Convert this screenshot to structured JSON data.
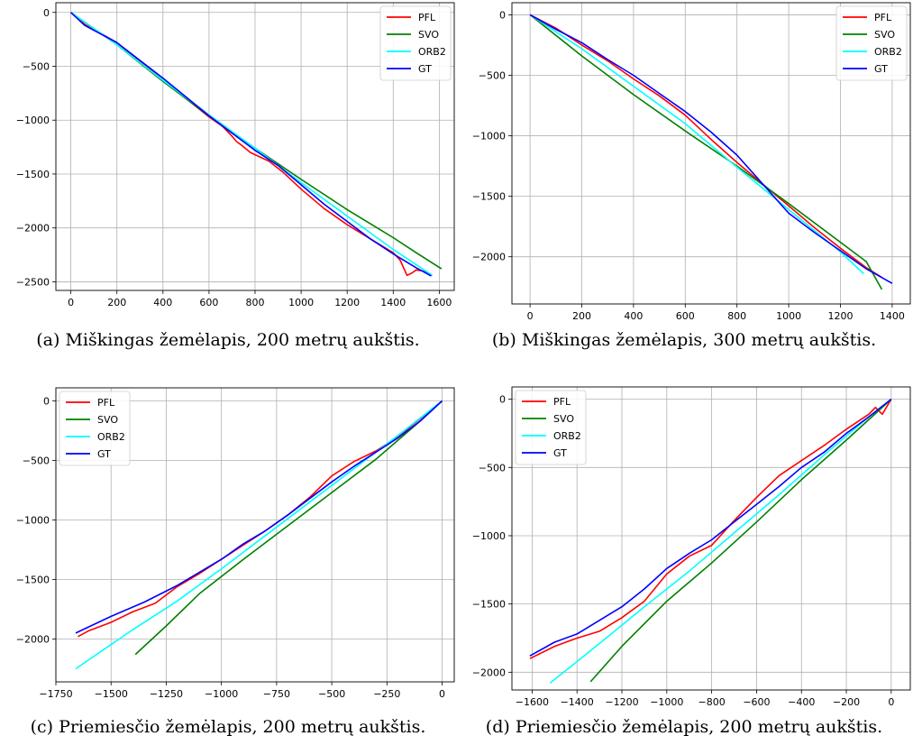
{
  "chart_data": [
    {
      "type": "line",
      "caption": "(a) Miškingas žemėlapis, 200 metrų aukštis.",
      "grid": true,
      "legend": "top-right",
      "xlim": [
        -65,
        1665
      ],
      "ylim": [
        -2580,
        90
      ],
      "xticks": [
        0,
        200,
        400,
        600,
        800,
        1000,
        1200,
        1400,
        1600
      ],
      "yticks": [
        0,
        -500,
        -1000,
        -1500,
        -2000,
        -2500
      ],
      "series": [
        {
          "name": "PFL",
          "color": "#ff0000",
          "x": [
            0,
            60,
            200,
            400,
            600,
            660,
            700,
            720,
            740,
            780,
            820,
            860,
            920,
            1000,
            1100,
            1200,
            1300,
            1400,
            1430,
            1460,
            1480,
            1500,
            1530,
            1560
          ],
          "y": [
            0,
            -110,
            -280,
            -630,
            -970,
            -1060,
            -1150,
            -1200,
            -1230,
            -1300,
            -1340,
            -1380,
            -1480,
            -1640,
            -1820,
            -1970,
            -2100,
            -2230,
            -2300,
            -2440,
            -2420,
            -2390,
            -2400,
            -2440
          ]
        },
        {
          "name": "SVO",
          "color": "#008000",
          "x": [
            0,
            200,
            400,
            600,
            800,
            1000,
            1200,
            1400,
            1500,
            1610
          ],
          "y": [
            0,
            -300,
            -640,
            -960,
            -1260,
            -1550,
            -1830,
            -2090,
            -2230,
            -2380
          ]
        },
        {
          "name": "ORB2",
          "color": "#00ffff",
          "x": [
            0,
            200,
            400,
            600,
            800,
            1000,
            1200,
            1400,
            1570
          ],
          "y": [
            0,
            -300,
            -630,
            -950,
            -1260,
            -1580,
            -1890,
            -2200,
            -2440
          ]
        },
        {
          "name": "GT",
          "color": "#0000ff",
          "x": [
            0,
            60,
            200,
            400,
            600,
            700,
            800,
            900,
            1000,
            1100,
            1200,
            1300,
            1400,
            1500,
            1565
          ],
          "y": [
            0,
            -120,
            -280,
            -610,
            -960,
            -1120,
            -1280,
            -1420,
            -1600,
            -1780,
            -1940,
            -2100,
            -2240,
            -2370,
            -2445
          ]
        }
      ]
    },
    {
      "type": "line",
      "caption": "(b) Miškingas žemėlapis, 300 metrų aukštis.",
      "grid": true,
      "legend": "top-right",
      "xlim": [
        -70,
        1470
      ],
      "ylim": [
        -2390,
        100
      ],
      "xticks": [
        0,
        200,
        400,
        600,
        800,
        1000,
        1200,
        1400
      ],
      "yticks": [
        0,
        -500,
        -1000,
        -1500,
        -2000
      ],
      "series": [
        {
          "name": "PFL",
          "color": "#ff0000",
          "x": [
            0,
            100,
            200,
            300,
            400,
            500,
            600,
            700,
            800,
            900,
            1000,
            1100,
            1200,
            1300,
            1360
          ],
          "y": [
            0,
            -110,
            -250,
            -380,
            -530,
            -670,
            -830,
            -1030,
            -1220,
            -1400,
            -1580,
            -1760,
            -1930,
            -2090,
            -2170
          ]
        },
        {
          "name": "SVO",
          "color": "#008000",
          "x": [
            0,
            200,
            400,
            600,
            800,
            1000,
            1200,
            1300,
            1360
          ],
          "y": [
            0,
            -340,
            -660,
            -960,
            -1250,
            -1560,
            -1880,
            -2040,
            -2270
          ]
        },
        {
          "name": "ORB2",
          "color": "#00ffff",
          "x": [
            0,
            200,
            400,
            600,
            800,
            1000,
            1200,
            1290
          ],
          "y": [
            0,
            -280,
            -590,
            -900,
            -1260,
            -1610,
            -1960,
            -2140
          ]
        },
        {
          "name": "GT",
          "color": "#0000ff",
          "x": [
            0,
            100,
            200,
            300,
            400,
            500,
            600,
            700,
            800,
            900,
            1000,
            1100,
            1200,
            1300,
            1400
          ],
          "y": [
            0,
            -120,
            -230,
            -370,
            -500,
            -650,
            -800,
            -970,
            -1160,
            -1400,
            -1640,
            -1800,
            -1950,
            -2100,
            -2220
          ]
        }
      ]
    },
    {
      "type": "line",
      "caption": "(c) Priemiesčio žemėlapis, 200 metrų aukštis.",
      "grid": true,
      "legend": "top-left",
      "xlim": [
        -1750,
        55
      ],
      "ylim": [
        -2360,
        110
      ],
      "xticks": [
        -1750,
        -1500,
        -1250,
        -1000,
        -750,
        -500,
        -250,
        0
      ],
      "yticks": [
        0,
        -500,
        -1000,
        -1500,
        -2000
      ],
      "series": [
        {
          "name": "PFL",
          "color": "#ff0000",
          "x": [
            -1650,
            -1600,
            -1500,
            -1400,
            -1300,
            -1200,
            -1100,
            -1000,
            -900,
            -800,
            -700,
            -600,
            -500,
            -400,
            -300,
            -200,
            -100,
            0
          ],
          "y": [
            -1980,
            -1930,
            -1860,
            -1770,
            -1700,
            -1560,
            -1450,
            -1330,
            -1210,
            -1090,
            -960,
            -810,
            -630,
            -510,
            -420,
            -300,
            -150,
            0
          ]
        },
        {
          "name": "SVO",
          "color": "#008000",
          "x": [
            -1390,
            -1250,
            -1100,
            -900,
            -700,
            -500,
            -300,
            -100,
            0
          ],
          "y": [
            -2130,
            -1890,
            -1620,
            -1330,
            -1050,
            -770,
            -490,
            -170,
            0
          ]
        },
        {
          "name": "ORB2",
          "color": "#00ffff",
          "x": [
            -1660,
            -1400,
            -1200,
            -1000,
            -800,
            -600,
            -400,
            -200,
            0
          ],
          "y": [
            -2250,
            -1920,
            -1680,
            -1410,
            -1130,
            -850,
            -570,
            -290,
            0
          ]
        },
        {
          "name": "GT",
          "color": "#0000ff",
          "x": [
            -1660,
            -1500,
            -1350,
            -1200,
            -1100,
            -1000,
            -900,
            -800,
            -700,
            -600,
            -500,
            -400,
            -300,
            -200,
            -100,
            0
          ],
          "y": [
            -1950,
            -1810,
            -1690,
            -1550,
            -1440,
            -1330,
            -1200,
            -1090,
            -960,
            -820,
            -680,
            -550,
            -430,
            -310,
            -170,
            0
          ]
        }
      ]
    },
    {
      "type": "line",
      "caption": "(d) Priemiesčio žemėlapis, 200 metrų aukštis.",
      "grid": true,
      "legend": "top-left",
      "xlim": [
        -1690,
        85
      ],
      "ylim": [
        -2130,
        90
      ],
      "xticks": [
        -1600,
        -1400,
        -1200,
        -1000,
        -800,
        -600,
        -400,
        -200,
        0
      ],
      "yticks": [
        0,
        -500,
        -1000,
        -1500,
        -2000
      ],
      "series": [
        {
          "name": "PFL",
          "color": "#ff0000",
          "x": [
            -1610,
            -1500,
            -1400,
            -1300,
            -1200,
            -1100,
            -1000,
            -900,
            -800,
            -700,
            -600,
            -500,
            -400,
            -300,
            -200,
            -100,
            -70,
            -40,
            0
          ],
          "y": [
            -1900,
            -1810,
            -1750,
            -1700,
            -1600,
            -1480,
            -1280,
            -1150,
            -1070,
            -890,
            -720,
            -560,
            -450,
            -340,
            -220,
            -110,
            -60,
            -110,
            0
          ]
        },
        {
          "name": "SVO",
          "color": "#008000",
          "x": [
            -1340,
            -1200,
            -1000,
            -800,
            -600,
            -400,
            -200,
            0
          ],
          "y": [
            -2070,
            -1810,
            -1480,
            -1200,
            -900,
            -590,
            -300,
            0
          ]
        },
        {
          "name": "ORB2",
          "color": "#00ffff",
          "x": [
            -1520,
            -1300,
            -1100,
            -900,
            -700,
            -500,
            -300,
            -100,
            0
          ],
          "y": [
            -2080,
            -1790,
            -1520,
            -1260,
            -980,
            -700,
            -410,
            -130,
            0
          ]
        },
        {
          "name": "GT",
          "color": "#0000ff",
          "x": [
            -1610,
            -1500,
            -1400,
            -1300,
            -1200,
            -1100,
            -1000,
            -900,
            -800,
            -700,
            -600,
            -500,
            -400,
            -300,
            -200,
            -100,
            0
          ],
          "y": [
            -1880,
            -1780,
            -1720,
            -1620,
            -1520,
            -1390,
            -1240,
            -1130,
            -1030,
            -900,
            -770,
            -640,
            -500,
            -390,
            -250,
            -130,
            0
          ]
        }
      ]
    }
  ]
}
